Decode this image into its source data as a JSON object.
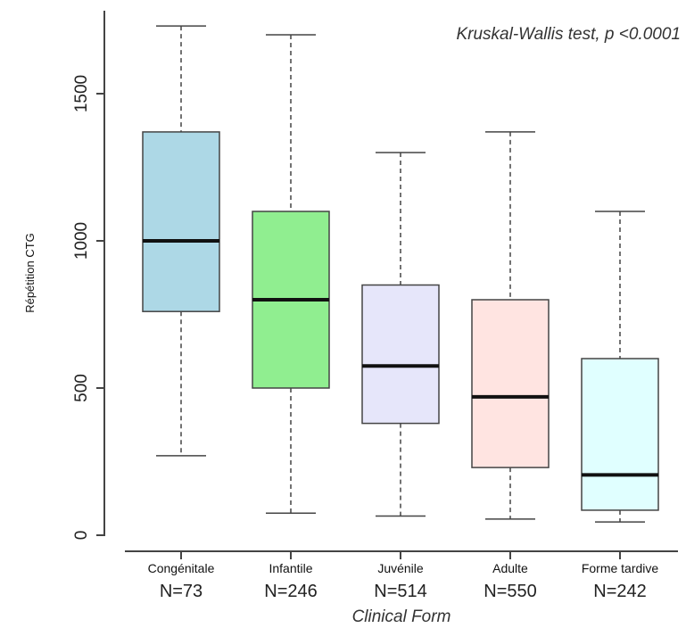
{
  "chart_data": {
    "type": "box",
    "title": "",
    "annotation": "Kruskal-Wallis test, p <0.0001",
    "xlabel": "Clinical Form",
    "ylabel": "Répétition CTG",
    "ylim": [
      0,
      1750
    ],
    "yticks": [
      0,
      500,
      1000,
      1500
    ],
    "grid": false,
    "categories": [
      "Congénitale",
      "Infantile",
      "Juvénile",
      "Adulte",
      "Forme tardive"
    ],
    "counts": [
      "N=73",
      "N=246",
      "N=514",
      "N=550",
      "N=242"
    ],
    "boxes": [
      {
        "category": "Congénitale",
        "whisker_low": 270,
        "q1": 760,
        "median": 1000,
        "q3": 1370,
        "whisker_high": 1730,
        "color": "#add8e6"
      },
      {
        "category": "Infantile",
        "whisker_low": 75,
        "q1": 500,
        "median": 800,
        "q3": 1100,
        "whisker_high": 1700,
        "color": "#90ee90"
      },
      {
        "category": "Juvénile",
        "whisker_low": 65,
        "q1": 380,
        "median": 575,
        "q3": 850,
        "whisker_high": 1300,
        "color": "#e6e6fa"
      },
      {
        "category": "Adulte",
        "whisker_low": 55,
        "q1": 230,
        "median": 470,
        "q3": 800,
        "whisker_high": 1370,
        "color": "#ffe4e1"
      },
      {
        "category": "Forme tardive",
        "whisker_low": 45,
        "q1": 85,
        "median": 205,
        "q3": 600,
        "whisker_high": 1100,
        "color": "#e0ffff"
      }
    ]
  }
}
